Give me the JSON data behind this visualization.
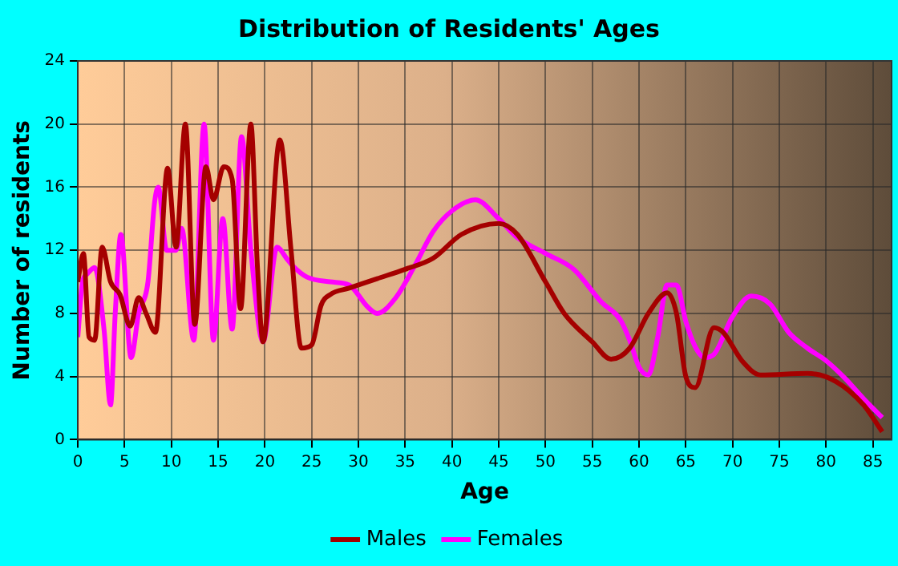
{
  "chart_data": {
    "type": "line",
    "title": "Distribution of Residents' Ages",
    "xlabel": "Age",
    "ylabel": "Number of residents",
    "xlim": [
      0,
      87
    ],
    "xticks": [
      0,
      5,
      10,
      15,
      20,
      25,
      30,
      35,
      40,
      45,
      50,
      55,
      60,
      65,
      70,
      75,
      80,
      85
    ],
    "ylim": [
      0,
      24
    ],
    "yticks": [
      0,
      4,
      8,
      12,
      16,
      20,
      24
    ],
    "grid": true,
    "legend": "bottom",
    "marker": "none",
    "line_style": "solid",
    "series": [
      {
        "name": "Males",
        "color": "#a50000",
        "x": [
          0,
          0.6,
          1.2,
          1.8,
          2.6,
          3.5,
          4.5,
          5.6,
          6.5,
          7.3,
          8.3,
          9.6,
          10.5,
          11.5,
          12.5,
          13.7,
          14.5,
          15.6,
          16.5,
          17.4,
          18.5,
          19.2,
          19.8,
          21.6,
          22.8,
          23.9,
          25,
          26,
          27,
          29,
          32,
          35,
          38,
          41,
          45,
          47,
          50,
          52,
          55,
          57,
          59,
          61,
          63,
          64,
          65,
          66,
          68,
          69,
          71,
          73,
          78,
          81,
          84,
          86
        ],
        "values": [
          10,
          11.8,
          6.5,
          6.3,
          12.2,
          10,
          9.2,
          7.2,
          9,
          8,
          6.8,
          17.2,
          12.2,
          20,
          7.3,
          17.3,
          15.2,
          17.3,
          16.5,
          8.3,
          20,
          11,
          6.2,
          19,
          12,
          5.8,
          6,
          8.5,
          9.2,
          9.6,
          10.2,
          10.8,
          11.5,
          13,
          13.7,
          13,
          10,
          8,
          6.2,
          5.1,
          5.8,
          8,
          9.3,
          8,
          4,
          3.3,
          7.1,
          6.8,
          5,
          4.1,
          4.2,
          3.7,
          2.2,
          0.5
        ]
      },
      {
        "name": "Females",
        "color": "#ff00ff",
        "x": [
          0,
          0.5,
          1,
          1.8,
          2.8,
          3.5,
          4,
          4.6,
          5.7,
          6.5,
          7.5,
          8.2,
          8.6,
          9.5,
          10.5,
          11.1,
          12.4,
          13.5,
          14.5,
          15.5,
          16.5,
          17.5,
          18.5,
          19.8,
          21.3,
          22.3,
          23,
          24.5,
          27,
          29,
          31,
          32,
          34,
          36,
          38,
          40,
          42.5,
          45,
          47,
          50,
          53,
          56,
          58,
          59,
          60,
          61,
          62,
          63,
          64,
          65,
          66,
          67,
          68,
          70,
          72,
          74,
          76,
          78,
          80,
          82,
          84,
          86
        ],
        "values": [
          6.5,
          10,
          10.5,
          10.9,
          7,
          2.2,
          8,
          13,
          5.2,
          8,
          10,
          15,
          16,
          12,
          12,
          13.4,
          6.3,
          20,
          6.3,
          14,
          7,
          19.2,
          12,
          6.2,
          12.2,
          11.5,
          11,
          10.3,
          10,
          9.8,
          8.4,
          8,
          9,
          11,
          13.2,
          14.5,
          15.2,
          14,
          12.8,
          11.8,
          10.8,
          8.7,
          7.6,
          6.3,
          4.6,
          4.1,
          6.5,
          9.8,
          9.8,
          7.5,
          5.9,
          5.2,
          5.4,
          7.8,
          9.1,
          8.6,
          6.8,
          5.8,
          5,
          3.9,
          2.6,
          1.4
        ]
      }
    ]
  }
}
